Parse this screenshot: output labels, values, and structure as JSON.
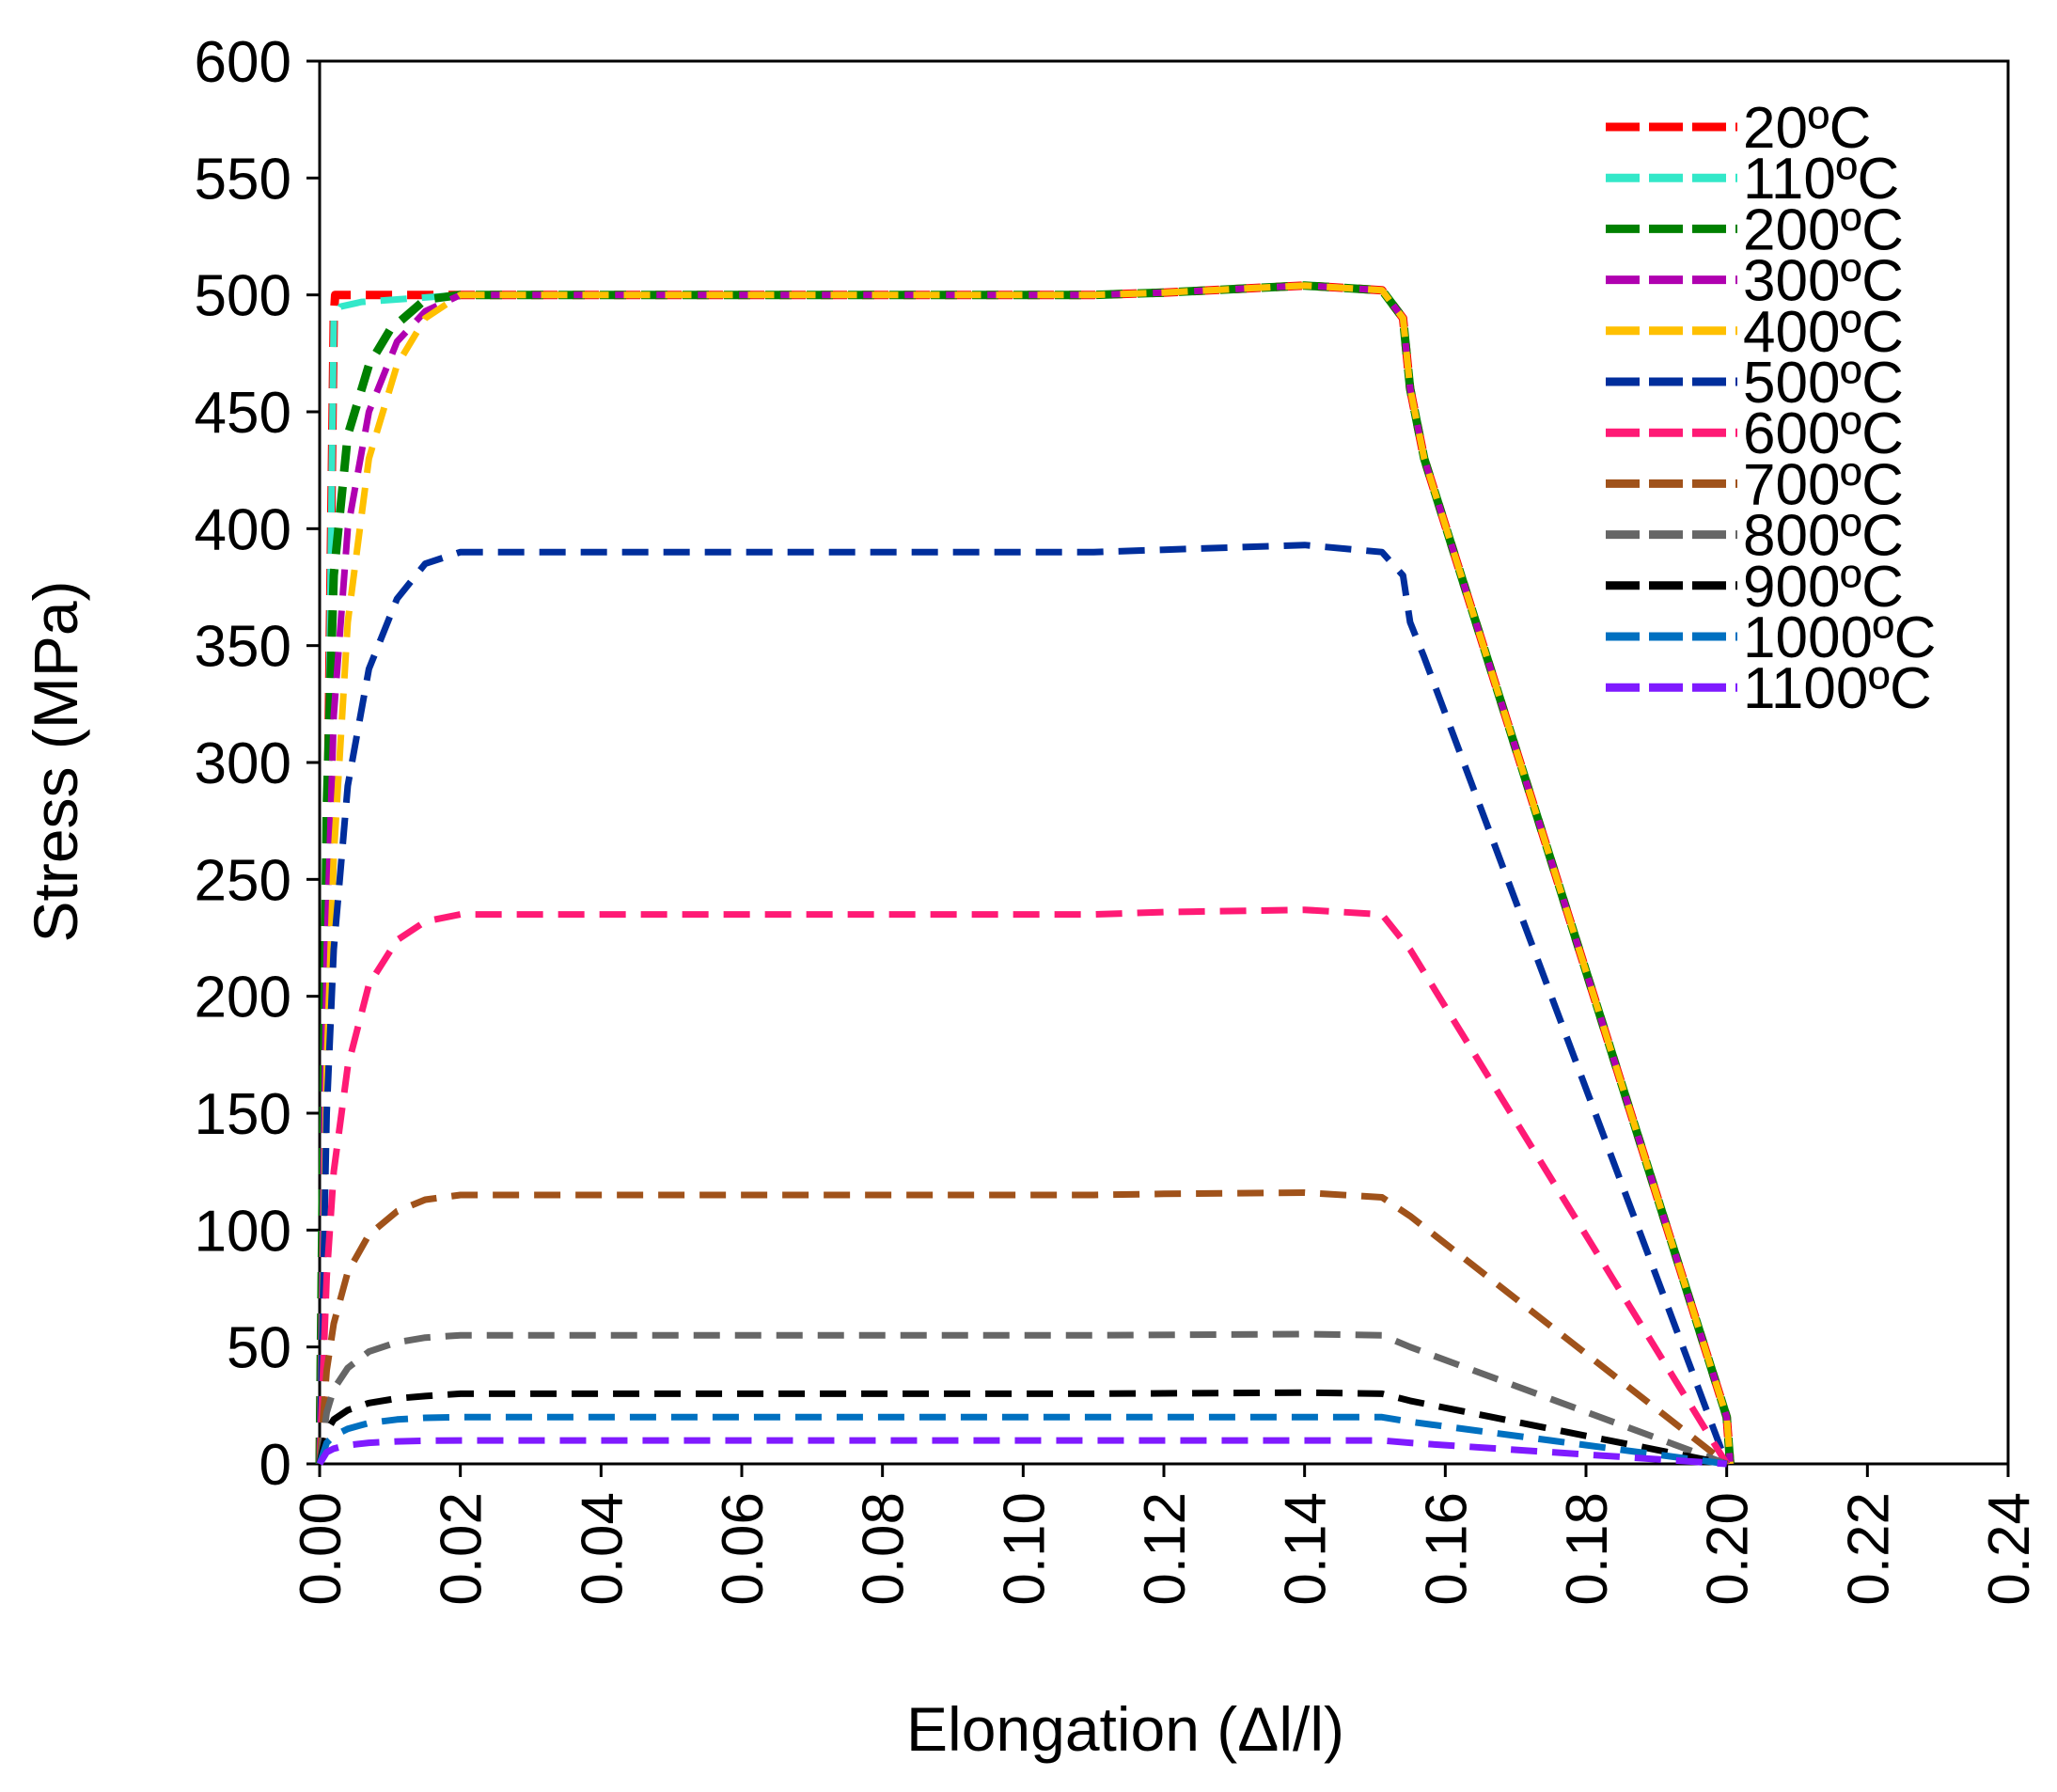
{
  "chart_data": {
    "type": "line",
    "xlabel": "Elongation (Δl/l)",
    "ylabel": "Stress (MPa)",
    "xlim": [
      0,
      0.24
    ],
    "ylim": [
      0,
      600
    ],
    "x_ticks": [
      "0.00",
      "0.02",
      "0.04",
      "0.06",
      "0.08",
      "0.10",
      "0.12",
      "0.14",
      "0.16",
      "0.18",
      "0.20",
      "0.22",
      "0.24"
    ],
    "y_ticks": [
      "0",
      "50",
      "100",
      "150",
      "200",
      "250",
      "300",
      "350",
      "400",
      "450",
      "500",
      "550",
      "600"
    ],
    "grid": false,
    "legend_position": "top-right",
    "series": [
      {
        "name": "20ºC",
        "color": "#ff0000",
        "points": [
          [
            0,
            0
          ],
          [
            0.002,
            490
          ],
          [
            0.0022,
            500
          ],
          [
            0.003,
            500
          ],
          [
            0.004,
            500
          ],
          [
            0.03,
            500
          ],
          [
            0.11,
            500
          ],
          [
            0.12,
            501
          ],
          [
            0.14,
            504
          ],
          [
            0.151,
            502
          ],
          [
            0.154,
            490
          ],
          [
            0.155,
            460
          ],
          [
            0.157,
            430
          ],
          [
            0.2,
            20
          ],
          [
            0.2005,
            0
          ]
        ]
      },
      {
        "name": "110ºC",
        "color": "#33e8c9",
        "points": [
          [
            0,
            0
          ],
          [
            0.002,
            490
          ],
          [
            0.003,
            495
          ],
          [
            0.006,
            497
          ],
          [
            0.02,
            500
          ],
          [
            0.11,
            500
          ],
          [
            0.12,
            501
          ],
          [
            0.14,
            504
          ],
          [
            0.151,
            502
          ],
          [
            0.154,
            490
          ],
          [
            0.155,
            460
          ],
          [
            0.157,
            430
          ],
          [
            0.2,
            20
          ],
          [
            0.2005,
            0
          ]
        ]
      },
      {
        "name": "200ºC",
        "color": "#008000",
        "points": [
          [
            0,
            0
          ],
          [
            0.001,
            280
          ],
          [
            0.002,
            380
          ],
          [
            0.004,
            440
          ],
          [
            0.007,
            470
          ],
          [
            0.01,
            485
          ],
          [
            0.015,
            498
          ],
          [
            0.02,
            500
          ],
          [
            0.11,
            500
          ],
          [
            0.12,
            501
          ],
          [
            0.14,
            504
          ],
          [
            0.151,
            502
          ],
          [
            0.154,
            490
          ],
          [
            0.155,
            460
          ],
          [
            0.157,
            430
          ],
          [
            0.2,
            20
          ],
          [
            0.2005,
            0
          ]
        ]
      },
      {
        "name": "300ºC",
        "color": "#b000b0",
        "points": [
          [
            0,
            0
          ],
          [
            0.001,
            220
          ],
          [
            0.002,
            320
          ],
          [
            0.004,
            400
          ],
          [
            0.007,
            450
          ],
          [
            0.011,
            480
          ],
          [
            0.015,
            493
          ],
          [
            0.02,
            500
          ],
          [
            0.11,
            500
          ],
          [
            0.12,
            501
          ],
          [
            0.14,
            504
          ],
          [
            0.151,
            502
          ],
          [
            0.154,
            490
          ],
          [
            0.155,
            460
          ],
          [
            0.157,
            430
          ],
          [
            0.2,
            20
          ],
          [
            0.2005,
            0
          ]
        ]
      },
      {
        "name": "400ºC",
        "color": "#ffc000",
        "points": [
          [
            0,
            0
          ],
          [
            0.001,
            170
          ],
          [
            0.002,
            260
          ],
          [
            0.004,
            360
          ],
          [
            0.007,
            430
          ],
          [
            0.011,
            470
          ],
          [
            0.015,
            490
          ],
          [
            0.02,
            500
          ],
          [
            0.11,
            500
          ],
          [
            0.12,
            501
          ],
          [
            0.14,
            504
          ],
          [
            0.151,
            502
          ],
          [
            0.154,
            490
          ],
          [
            0.155,
            460
          ],
          [
            0.157,
            430
          ],
          [
            0.2,
            20
          ],
          [
            0.2005,
            0
          ]
        ]
      },
      {
        "name": "500ºC",
        "color": "#002e9c",
        "points": [
          [
            0,
            0
          ],
          [
            0.001,
            150
          ],
          [
            0.002,
            220
          ],
          [
            0.004,
            290
          ],
          [
            0.007,
            340
          ],
          [
            0.011,
            370
          ],
          [
            0.015,
            385
          ],
          [
            0.02,
            390
          ],
          [
            0.11,
            390
          ],
          [
            0.12,
            391
          ],
          [
            0.14,
            393
          ],
          [
            0.151,
            390
          ],
          [
            0.154,
            380
          ],
          [
            0.155,
            360
          ],
          [
            0.157,
            345
          ],
          [
            0.2,
            0
          ]
        ]
      },
      {
        "name": "600ºC",
        "color": "#ff1a75",
        "points": [
          [
            0,
            0
          ],
          [
            0.001,
            80
          ],
          [
            0.002,
            125
          ],
          [
            0.004,
            170
          ],
          [
            0.007,
            205
          ],
          [
            0.011,
            224
          ],
          [
            0.015,
            232
          ],
          [
            0.02,
            235
          ],
          [
            0.11,
            235
          ],
          [
            0.12,
            236
          ],
          [
            0.14,
            237
          ],
          [
            0.151,
            235
          ],
          [
            0.155,
            220
          ],
          [
            0.2,
            0
          ]
        ]
      },
      {
        "name": "700ºC",
        "color": "#a0521a",
        "points": [
          [
            0,
            0
          ],
          [
            0.001,
            40
          ],
          [
            0.002,
            60
          ],
          [
            0.004,
            82
          ],
          [
            0.007,
            98
          ],
          [
            0.011,
            108
          ],
          [
            0.015,
            113
          ],
          [
            0.02,
            115
          ],
          [
            0.11,
            115
          ],
          [
            0.12,
            115.5
          ],
          [
            0.14,
            116
          ],
          [
            0.151,
            114
          ],
          [
            0.155,
            106
          ],
          [
            0.2,
            0
          ]
        ]
      },
      {
        "name": "800ºC",
        "color": "#666666",
        "points": [
          [
            0,
            0
          ],
          [
            0.001,
            22
          ],
          [
            0.002,
            32
          ],
          [
            0.004,
            41
          ],
          [
            0.007,
            48
          ],
          [
            0.011,
            52
          ],
          [
            0.015,
            54
          ],
          [
            0.02,
            55
          ],
          [
            0.11,
            55
          ],
          [
            0.14,
            55.5
          ],
          [
            0.151,
            55
          ],
          [
            0.155,
            50
          ],
          [
            0.2,
            0
          ]
        ]
      },
      {
        "name": "900ºC",
        "color": "#000000",
        "points": [
          [
            0,
            0
          ],
          [
            0.001,
            14
          ],
          [
            0.002,
            19
          ],
          [
            0.004,
            23
          ],
          [
            0.007,
            26
          ],
          [
            0.011,
            28
          ],
          [
            0.015,
            29
          ],
          [
            0.02,
            30
          ],
          [
            0.11,
            30
          ],
          [
            0.14,
            30.5
          ],
          [
            0.151,
            30
          ],
          [
            0.155,
            27
          ],
          [
            0.2,
            0
          ]
        ]
      },
      {
        "name": "1000ºC",
        "color": "#0070c0",
        "points": [
          [
            0,
            0
          ],
          [
            0.001,
            9
          ],
          [
            0.002,
            12
          ],
          [
            0.004,
            15
          ],
          [
            0.007,
            17.5
          ],
          [
            0.011,
            19
          ],
          [
            0.015,
            19.7
          ],
          [
            0.02,
            20
          ],
          [
            0.14,
            20
          ],
          [
            0.151,
            20
          ],
          [
            0.155,
            18
          ],
          [
            0.2,
            0
          ]
        ]
      },
      {
        "name": "1100ºC",
        "color": "#7f1aff",
        "points": [
          [
            0,
            0
          ],
          [
            0.001,
            5
          ],
          [
            0.002,
            6.5
          ],
          [
            0.004,
            8
          ],
          [
            0.007,
            9
          ],
          [
            0.011,
            9.6
          ],
          [
            0.015,
            9.9
          ],
          [
            0.02,
            10
          ],
          [
            0.14,
            10
          ],
          [
            0.151,
            10
          ],
          [
            0.155,
            9
          ],
          [
            0.2,
            0
          ]
        ]
      }
    ]
  }
}
